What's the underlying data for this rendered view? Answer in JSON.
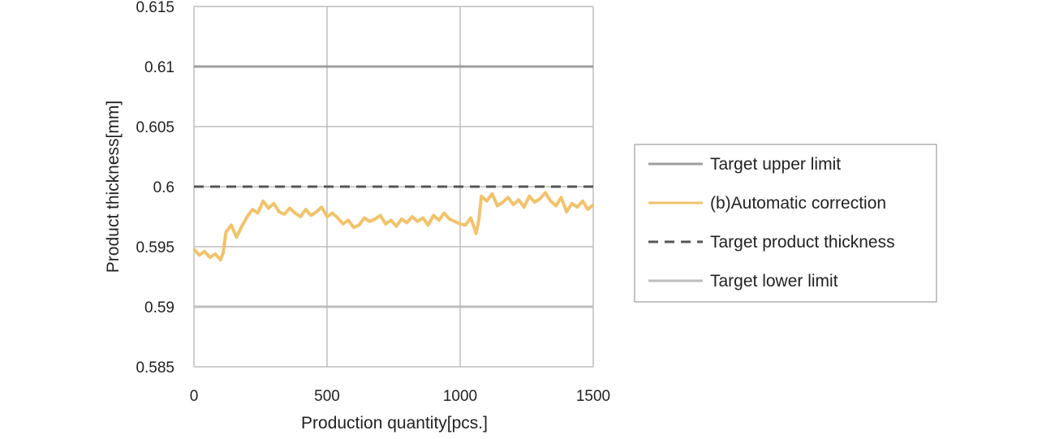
{
  "colors": {
    "upper_limit": "#9e9e9e",
    "automatic_correction": "#f0c36d",
    "target_thickness": "#555555",
    "lower_limit": "#bdbdbd",
    "grid": "#bdbdbd"
  },
  "chart_data": {
    "type": "line",
    "xlabel": "Production quantity[pcs.]",
    "ylabel": "Product thickness[mm]",
    "xlim": [
      0,
      1500
    ],
    "ylim": [
      0.585,
      0.615
    ],
    "x_ticks": [
      0,
      500,
      1000,
      1500
    ],
    "x_tick_labels": [
      "0",
      "500",
      "1000",
      "1500"
    ],
    "y_ticks": [
      0.615,
      0.61,
      0.605,
      0.6,
      0.595,
      0.59,
      0.585
    ],
    "y_tick_labels": [
      "0.615",
      "0.61",
      "0.605",
      "0.6",
      "0.595",
      "0.59",
      "0.585"
    ],
    "grid": true,
    "legend_position": "right",
    "series": [
      {
        "name": "Target upper limit",
        "style": "solid",
        "color_key": "upper_limit",
        "x": [
          0,
          1500
        ],
        "values": [
          0.61,
          0.61
        ]
      },
      {
        "name": "(b)Automatic correction",
        "style": "solid",
        "color_key": "automatic_correction",
        "x": [
          0,
          20,
          40,
          60,
          80,
          100,
          110,
          120,
          140,
          160,
          180,
          200,
          220,
          240,
          260,
          280,
          300,
          320,
          340,
          360,
          380,
          400,
          420,
          440,
          460,
          480,
          500,
          520,
          540,
          560,
          580,
          600,
          620,
          640,
          660,
          680,
          700,
          720,
          740,
          760,
          780,
          800,
          820,
          840,
          860,
          880,
          900,
          920,
          940,
          960,
          980,
          1000,
          1020,
          1040,
          1060,
          1070,
          1080,
          1100,
          1120,
          1140,
          1160,
          1180,
          1200,
          1220,
          1240,
          1260,
          1280,
          1300,
          1320,
          1340,
          1360,
          1380,
          1400,
          1420,
          1440,
          1460,
          1480,
          1500
        ],
        "values": [
          0.5948,
          0.5943,
          0.5946,
          0.5941,
          0.5944,
          0.5939,
          0.5945,
          0.5962,
          0.5968,
          0.5958,
          0.5967,
          0.5975,
          0.5981,
          0.5978,
          0.5988,
          0.5982,
          0.5986,
          0.5979,
          0.5977,
          0.5982,
          0.5978,
          0.5975,
          0.5981,
          0.5976,
          0.5979,
          0.5983,
          0.5975,
          0.5978,
          0.5974,
          0.5969,
          0.5972,
          0.5966,
          0.5968,
          0.5974,
          0.5971,
          0.5973,
          0.5976,
          0.5969,
          0.5972,
          0.5967,
          0.5973,
          0.597,
          0.5975,
          0.5971,
          0.5974,
          0.5968,
          0.5976,
          0.5972,
          0.5978,
          0.5973,
          0.5971,
          0.5969,
          0.5968,
          0.5974,
          0.5961,
          0.5972,
          0.5992,
          0.5988,
          0.5994,
          0.5984,
          0.5987,
          0.5991,
          0.5985,
          0.5989,
          0.5983,
          0.5992,
          0.5987,
          0.599,
          0.5995,
          0.5988,
          0.5984,
          0.5991,
          0.5979,
          0.5986,
          0.5983,
          0.5988,
          0.5981,
          0.5985
        ]
      },
      {
        "name": "Target product thickness",
        "style": "dashed",
        "color_key": "target_thickness",
        "x": [
          0,
          1500
        ],
        "values": [
          0.6,
          0.6
        ]
      },
      {
        "name": "Target lower limit",
        "style": "solid",
        "color_key": "lower_limit",
        "x": [
          0,
          1500
        ],
        "values": [
          0.59,
          0.59
        ]
      }
    ]
  }
}
